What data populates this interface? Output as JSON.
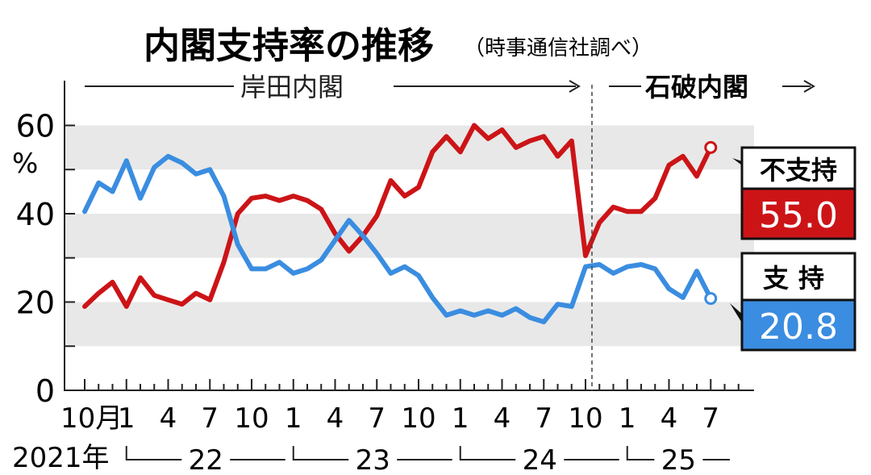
{
  "chart_data": {
    "type": "line",
    "title": "内閣支持率の推移",
    "source": "（時事通信社調べ）",
    "y_unit": "%",
    "ylim": [
      0,
      70
    ],
    "yticks": [
      0,
      20,
      40,
      60
    ],
    "grid_bands": true,
    "cabinets": [
      {
        "label": "岸田内閣",
        "arrow": "→"
      },
      {
        "label": "石破内閣",
        "arrow": "→"
      }
    ],
    "x_month_labels": [
      "10月",
      "1",
      "4",
      "7",
      "10",
      "1",
      "4",
      "7",
      "10",
      "1",
      "4",
      "7",
      "10",
      "1",
      "4",
      "7"
    ],
    "x_year_labels": [
      "2021年",
      "22",
      "23",
      "24",
      "25"
    ],
    "series": [
      {
        "name": "不支持",
        "color": "#cc1417",
        "final_label": "55.0",
        "x": [
          "2021-10",
          "2021-11",
          "2021-12",
          "2022-01",
          "2022-02",
          "2022-03",
          "2022-04",
          "2022-05",
          "2022-06",
          "2022-07",
          "2022-08",
          "2022-09",
          "2022-10",
          "2022-11",
          "2022-12",
          "2023-01",
          "2023-02",
          "2023-03",
          "2023-04",
          "2023-05",
          "2023-06",
          "2023-07",
          "2023-08",
          "2023-09",
          "2023-10",
          "2023-11",
          "2023-12",
          "2024-01",
          "2024-02",
          "2024-03",
          "2024-04",
          "2024-05",
          "2024-06",
          "2024-07",
          "2024-08",
          "2024-09",
          "2024-10",
          "2024-11",
          "2024-12",
          "2025-01",
          "2025-02",
          "2025-03",
          "2025-04",
          "2025-05",
          "2025-06",
          "2025-07"
        ],
        "values": [
          19,
          22,
          24.5,
          19,
          25.5,
          21.5,
          20.5,
          19.5,
          22,
          20.5,
          29,
          40,
          43.5,
          44,
          43,
          44,
          43,
          41,
          35.5,
          31.5,
          35,
          39.5,
          47.5,
          44,
          46,
          54,
          57.5,
          54,
          60,
          57,
          59,
          55,
          56.5,
          57.5,
          53,
          56.5,
          30.5,
          38,
          41.5,
          40.5,
          40.5,
          43.5,
          51,
          53,
          48.5,
          55.0
        ]
      },
      {
        "name": "支持",
        "color": "#3a8de0",
        "final_label": "20.8",
        "x": [
          "2021-10",
          "2021-11",
          "2021-12",
          "2022-01",
          "2022-02",
          "2022-03",
          "2022-04",
          "2022-05",
          "2022-06",
          "2022-07",
          "2022-08",
          "2022-09",
          "2022-10",
          "2022-11",
          "2022-12",
          "2023-01",
          "2023-02",
          "2023-03",
          "2023-04",
          "2023-05",
          "2023-06",
          "2023-07",
          "2023-08",
          "2023-09",
          "2023-10",
          "2023-11",
          "2023-12",
          "2024-01",
          "2024-02",
          "2024-03",
          "2024-04",
          "2024-05",
          "2024-06",
          "2024-07",
          "2024-08",
          "2024-09",
          "2024-10",
          "2024-11",
          "2024-12",
          "2025-01",
          "2025-02",
          "2025-03",
          "2025-04",
          "2025-05",
          "2025-06",
          "2025-07"
        ],
        "values": [
          40.5,
          47,
          45,
          52,
          43.5,
          50.5,
          53,
          51.5,
          49,
          50,
          44,
          33,
          27.5,
          27.5,
          29,
          26.5,
          27.5,
          29.5,
          34,
          38.5,
          35,
          31,
          26.5,
          28,
          26,
          21,
          17,
          18,
          17,
          18,
          17,
          18.5,
          16.5,
          15.5,
          19.5,
          19,
          28,
          28.5,
          26.5,
          28,
          28.5,
          27.5,
          23,
          21,
          27,
          20.8
        ]
      }
    ]
  }
}
